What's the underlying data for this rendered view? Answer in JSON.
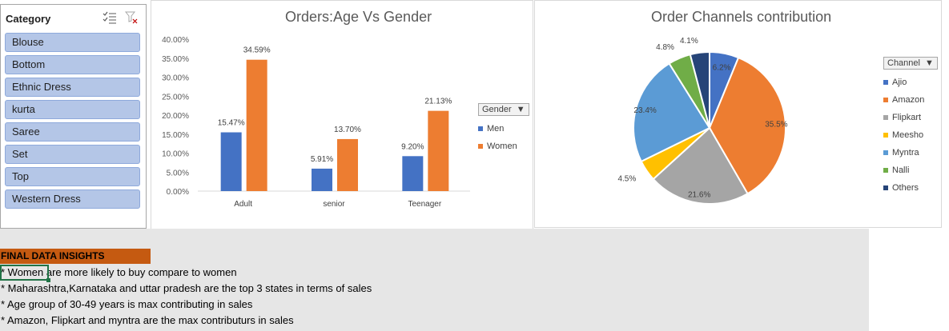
{
  "slicer": {
    "title": "Category",
    "items": [
      "Blouse",
      "Bottom",
      "Ethnic Dress",
      "kurta",
      "Saree",
      "Set",
      "Top",
      "Western Dress"
    ]
  },
  "chart_data": [
    {
      "type": "bar",
      "title": "Orders:Age Vs Gender",
      "categories": [
        "Adult",
        "senior",
        "Teenager"
      ],
      "series": [
        {
          "name": "Men",
          "values": [
            15.47,
            5.91,
            9.2
          ],
          "labels": [
            "15.47%",
            "5.91%",
            "9.20%"
          ],
          "color": "#4472c4"
        },
        {
          "name": "Women",
          "values": [
            34.59,
            13.7,
            21.13
          ],
          "labels": [
            "34.59%",
            "13.70%",
            "21.13%"
          ],
          "color": "#ed7d31"
        }
      ],
      "ylim": [
        0,
        40
      ],
      "yticks": [
        "0.00%",
        "5.00%",
        "10.00%",
        "15.00%",
        "20.00%",
        "25.00%",
        "30.00%",
        "35.00%",
        "40.00%"
      ],
      "legend_title": "Gender",
      "legend_position": "right",
      "grid": false
    },
    {
      "type": "pie",
      "title": "Order Channels contribution",
      "legend_title": "Channel",
      "legend_position": "right",
      "slices": [
        {
          "name": "Ajio",
          "value": 6.2,
          "label": "6.2%",
          "color": "#4472c4"
        },
        {
          "name": "Amazon",
          "value": 35.5,
          "label": "35.5%",
          "color": "#ed7d31"
        },
        {
          "name": "Flipkart",
          "value": 21.6,
          "label": "21.6%",
          "color": "#a5a5a5"
        },
        {
          "name": "Meesho",
          "value": 4.5,
          "label": "4.5%",
          "color": "#ffc000"
        },
        {
          "name": "Myntra",
          "value": 23.4,
          "label": "23.4%",
          "color": "#5b9bd5"
        },
        {
          "name": "Nalli",
          "value": 4.8,
          "label": "4.8%",
          "color": "#70ad47"
        },
        {
          "name": "Others",
          "value": 4.1,
          "label": "4.1%",
          "color": "#264478"
        }
      ]
    }
  ],
  "insights": {
    "header": "FINAL DATA INSIGHTS",
    "lines": [
      "* Women are more likely to buy compare to women",
      "* Maharashtra,Karnataka and uttar pradesh are the top 3 states in terms of sales",
      "* Age group of 30-49 years is max contributing in sales",
      "* Amazon, Flipkart and myntra are the max contributurs in sales"
    ]
  }
}
